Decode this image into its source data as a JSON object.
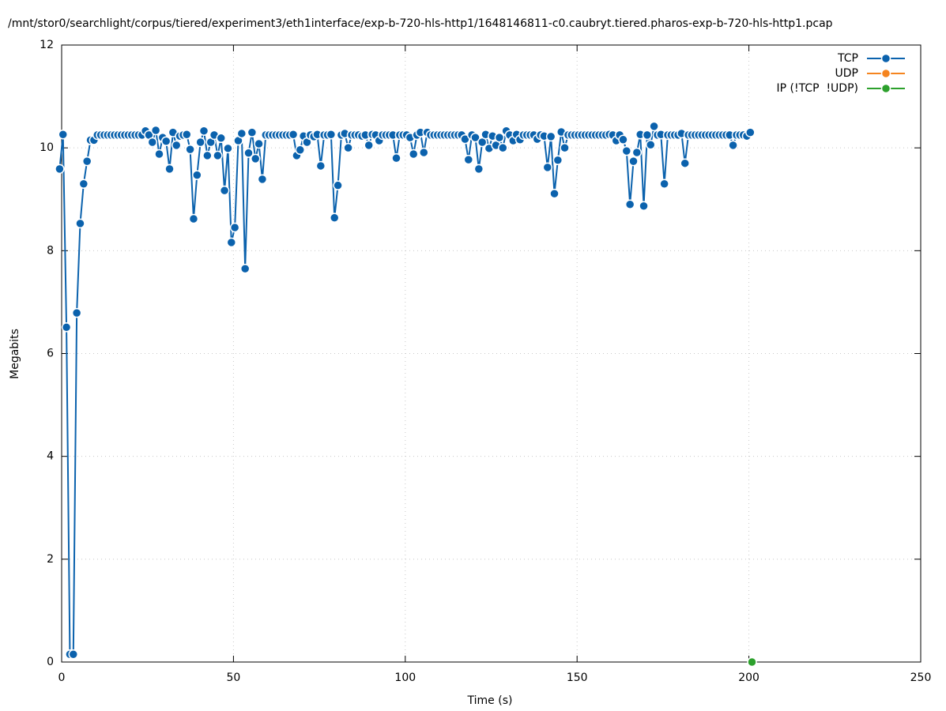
{
  "chart_data": {
    "type": "line",
    "title": "/mnt/stor0/searchlight/corpus/tiered/experiment3/eth1interface/exp-b-720-hls-http1/1648146811-c0.caubryt.tiered.pharos-exp-b-720-hls-http1.pcap",
    "x_label": "Time (s)",
    "y_label": "Megabits",
    "xlim": [
      0,
      250
    ],
    "xticks": [
      0,
      50,
      100,
      150,
      200,
      250
    ],
    "ylim": [
      0,
      12
    ],
    "yticks": [
      0,
      2,
      4,
      6,
      8,
      10,
      12
    ],
    "grid": true,
    "legend": "top-right",
    "x": [
      -0.6,
      0.4,
      1.4,
      2.4,
      3.4,
      4.4,
      5.4,
      6.4,
      7.4,
      8.4,
      9.4,
      10.4,
      11.4,
      12.4,
      13.4,
      14.4,
      15.4,
      16.4,
      17.4,
      18.4,
      19.4,
      20.4,
      21.4,
      22.4,
      23.4,
      24.4,
      25.4,
      26.4,
      27.4,
      28.4,
      29.4,
      30.4,
      31.4,
      32.4,
      33.4,
      34.4,
      35.4,
      36.4,
      37.4,
      38.4,
      39.4,
      40.4,
      41.4,
      42.4,
      43.4,
      44.4,
      45.4,
      46.4,
      47.4,
      48.4,
      49.4,
      50.4,
      51.4,
      52.4,
      53.4,
      54.4,
      55.4,
      56.4,
      57.4,
      58.4,
      59.4,
      60.4,
      61.4,
      62.4,
      63.4,
      64.4,
      65.4,
      66.4,
      67.4,
      68.4,
      69.4,
      70.4,
      71.4,
      72.4,
      73.4,
      74.4,
      75.4,
      76.4,
      77.4,
      78.4,
      79.4,
      80.4,
      81.4,
      82.4,
      83.4,
      84.4,
      85.4,
      86.4,
      87.4,
      88.4,
      89.4,
      90.4,
      91.4,
      92.4,
      93.4,
      94.4,
      95.4,
      96.4,
      97.4,
      98.4,
      99.4,
      100.4,
      101.4,
      102.4,
      103.4,
      104.4,
      105.4,
      106.4,
      107.4,
      108.4,
      109.4,
      110.4,
      111.4,
      112.4,
      113.4,
      114.4,
      115.4,
      116.4,
      117.4,
      118.4,
      119.4,
      120.4,
      121.4,
      122.4,
      123.4,
      124.4,
      125.4,
      126.4,
      127.4,
      128.4,
      129.4,
      130.4,
      131.4,
      132.4,
      133.4,
      134.4,
      135.4,
      136.4,
      137.4,
      138.4,
      139.4,
      140.4,
      141.4,
      142.4,
      143.4,
      144.4,
      145.4,
      146.4,
      147.4,
      148.4,
      149.4,
      150.4,
      151.4,
      152.4,
      153.4,
      154.4,
      155.4,
      156.4,
      157.4,
      158.4,
      159.4,
      160.4,
      161.4,
      162.4,
      163.4,
      164.4,
      165.4,
      166.4,
      167.4,
      168.4,
      169.4,
      170.4,
      171.4,
      172.4,
      173.4,
      174.4,
      175.4,
      176.4,
      177.4,
      178.4,
      179.4,
      180.4,
      181.4,
      182.4,
      183.4,
      184.4,
      185.4,
      186.4,
      187.4,
      188.4,
      189.4,
      190.4,
      191.4,
      192.4,
      193.4,
      194.4,
      195.4,
      196.4,
      197.4,
      198.4,
      199.4,
      200.4
    ],
    "series": [
      {
        "name": "TCP",
        "color": "#0b62ad",
        "values": [
          9.59,
          10.26,
          6.51,
          0.15,
          0.15,
          6.79,
          8.53,
          9.3,
          9.74,
          10.15,
          10.15,
          10.25,
          10.25,
          10.25,
          10.25,
          10.25,
          10.25,
          10.25,
          10.25,
          10.25,
          10.25,
          10.25,
          10.25,
          10.25,
          10.25,
          10.33,
          10.25,
          10.11,
          10.34,
          9.88,
          10.2,
          10.13,
          9.59,
          10.3,
          10.05,
          10.23,
          10.25,
          10.26,
          9.97,
          8.62,
          9.47,
          10.11,
          10.33,
          9.85,
          10.11,
          10.25,
          9.85,
          10.19,
          9.17,
          9.99,
          8.16,
          8.45,
          10.14,
          10.28,
          7.65,
          9.9,
          10.3,
          9.79,
          10.08,
          9.39,
          10.25,
          10.25,
          10.25,
          10.25,
          10.25,
          10.25,
          10.25,
          10.25,
          10.26,
          9.85,
          9.96,
          10.23,
          10.11,
          10.25,
          10.22,
          10.26,
          9.65,
          10.25,
          10.25,
          10.26,
          8.64,
          9.27,
          10.25,
          10.28,
          10.0,
          10.25,
          10.25,
          10.25,
          10.23,
          10.25,
          10.05,
          10.26,
          10.25,
          10.14,
          10.25,
          10.25,
          10.25,
          10.25,
          9.8,
          10.25,
          10.25,
          10.25,
          10.2,
          9.88,
          10.25,
          10.3,
          9.91,
          10.3,
          10.25,
          10.25,
          10.25,
          10.25,
          10.25,
          10.25,
          10.25,
          10.25,
          10.25,
          10.25,
          10.17,
          9.77,
          10.25,
          10.2,
          9.59,
          10.11,
          10.26,
          9.99,
          10.23,
          10.05,
          10.2,
          10.0,
          10.33,
          10.25,
          10.14,
          10.26,
          10.16,
          10.25,
          10.25,
          10.25,
          10.25,
          10.17,
          10.25,
          10.23,
          9.62,
          10.22,
          9.11,
          9.76,
          10.31,
          10.0,
          10.25,
          10.25,
          10.25,
          10.25,
          10.25,
          10.25,
          10.25,
          10.25,
          10.25,
          10.25,
          10.25,
          10.25,
          10.26,
          10.25,
          10.14,
          10.25,
          10.16,
          9.94,
          8.9,
          9.74,
          9.91,
          10.26,
          8.87,
          10.25,
          10.06,
          10.42,
          10.25,
          10.26,
          9.3,
          10.25,
          10.25,
          10.25,
          10.25,
          10.28,
          9.7,
          10.25,
          10.25,
          10.25,
          10.25,
          10.25,
          10.25,
          10.25,
          10.25,
          10.25,
          10.25,
          10.25,
          10.25,
          10.25,
          10.05,
          10.25,
          10.25,
          10.25,
          10.23,
          10.3
        ]
      },
      {
        "name": "UDP",
        "color": "#f5841f",
        "x": [],
        "values": []
      },
      {
        "name": "IP (!TCP  !UDP)",
        "color": "#2ca02c",
        "x": [
          200.9
        ],
        "values": [
          0
        ]
      }
    ]
  }
}
